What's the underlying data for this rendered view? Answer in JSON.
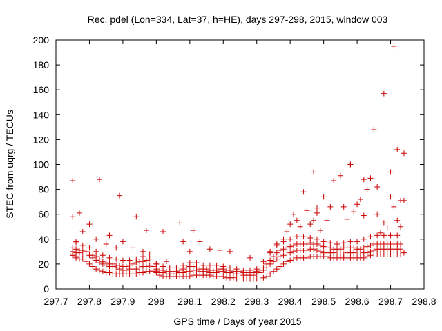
{
  "chart_data": {
    "type": "scatter",
    "title": "Rec. pdel (Lon=334, Lat=37, h=HE), days 297-298, 2015, window 003",
    "xlabel": "GPS time / Days of year 2015",
    "ylabel": "STEC from uqrg / TECUs",
    "xlim": [
      297.7,
      298.8
    ],
    "ylim": [
      0,
      200
    ],
    "xticks": [
      "297.7",
      "297.8",
      "297.9",
      "298",
      "298.1",
      "298.2",
      "298.3",
      "298.4",
      "298.5",
      "298.6",
      "298.7",
      "298.8"
    ],
    "yticks": [
      "0",
      "20",
      "40",
      "60",
      "80",
      "100",
      "120",
      "140",
      "160",
      "180",
      "200"
    ],
    "grid": false,
    "legend": "none",
    "marker": "+",
    "color": "#cc0000",
    "series": [
      {
        "x": [
          297.75,
          297.75,
          297.76,
          297.76,
          297.77,
          297.78,
          297.79,
          297.8,
          297.81,
          297.82,
          297.83,
          297.84,
          297.85,
          297.86,
          297.87,
          297.88,
          297.89,
          297.9,
          297.91,
          297.92,
          297.93,
          297.94,
          297.95,
          297.96,
          297.97,
          297.98,
          297.99,
          298.0,
          298.01,
          298.02,
          298.03,
          298.04,
          298.05,
          298.06,
          298.07,
          298.08,
          298.09,
          298.1,
          298.11,
          298.12,
          298.13,
          298.14,
          298.15,
          298.16,
          298.17,
          298.18,
          298.19,
          298.2,
          298.21,
          298.22,
          298.23,
          298.24,
          298.25,
          298.26,
          298.27,
          298.28,
          298.29,
          298.3,
          298.31,
          298.32,
          298.33,
          298.34,
          298.35,
          298.36,
          298.37,
          298.38,
          298.39,
          298.4,
          298.41,
          298.42,
          298.43,
          298.44,
          298.45,
          298.46,
          298.47,
          298.48,
          298.49,
          298.5,
          298.51,
          298.52,
          298.53,
          298.54,
          298.55,
          298.56,
          298.57,
          298.58,
          298.59,
          298.6,
          298.61,
          298.62,
          298.63,
          298.64,
          298.65,
          298.66,
          298.67,
          298.68,
          298.69,
          298.7,
          298.71,
          298.72,
          298.73,
          298.74
        ],
        "y": [
          27,
          27,
          26,
          25,
          24,
          24,
          22,
          20,
          18,
          16,
          15,
          14,
          13,
          13,
          12,
          12,
          12,
          12,
          12,
          12,
          12,
          12,
          13,
          13,
          14,
          14,
          14,
          13,
          11,
          10,
          10,
          10,
          10,
          10,
          10,
          10,
          10,
          10,
          11,
          11,
          11,
          11,
          11,
          11,
          10,
          10,
          10,
          10,
          9,
          9,
          9,
          8,
          8,
          8,
          8,
          8,
          8,
          8,
          8,
          9,
          10,
          12,
          14,
          16,
          18,
          20,
          22,
          23,
          24,
          25,
          25,
          25,
          25,
          26,
          26,
          26,
          26,
          26,
          26,
          25,
          25,
          25,
          25,
          25,
          25,
          25,
          25,
          25,
          25,
          25,
          26,
          27,
          28,
          28,
          28,
          28,
          28,
          28,
          28,
          28,
          28,
          29
        ]
      },
      {
        "x": [
          297.75,
          297.76,
          297.77,
          297.78,
          297.79,
          297.8,
          297.81,
          297.82,
          297.83,
          297.84,
          297.85,
          297.86,
          297.87,
          297.88,
          297.89,
          297.9,
          297.91,
          297.92,
          297.93,
          297.94,
          297.95,
          297.96,
          297.97,
          297.98,
          297.99,
          298.0,
          298.01,
          298.02,
          298.03,
          298.04,
          298.05,
          298.06,
          298.07,
          298.08,
          298.09,
          298.1,
          298.11,
          298.12,
          298.13,
          298.14,
          298.15,
          298.16,
          298.17,
          298.18,
          298.19,
          298.2,
          298.21,
          298.22,
          298.23,
          298.24,
          298.25,
          298.26,
          298.27,
          298.28,
          298.29,
          298.3,
          298.31,
          298.32,
          298.33,
          298.34,
          298.35,
          298.36,
          298.37,
          298.38,
          298.39,
          298.4,
          298.41,
          298.42,
          298.43,
          298.44,
          298.45,
          298.46,
          298.47,
          298.48,
          298.49,
          298.5,
          298.51,
          298.52,
          298.53,
          298.54,
          298.55,
          298.56,
          298.57,
          298.58,
          298.59,
          298.6,
          298.61,
          298.62,
          298.63,
          298.64,
          298.65,
          298.66,
          298.67,
          298.68,
          298.69,
          298.7,
          298.71,
          298.72,
          298.73
        ],
        "y": [
          30,
          29,
          29,
          28,
          28,
          27,
          25,
          23,
          21,
          20,
          19,
          18,
          18,
          17,
          16,
          15,
          15,
          16,
          16,
          16,
          17,
          18,
          18,
          19,
          15,
          14,
          13,
          13,
          12,
          12,
          12,
          12,
          13,
          13,
          14,
          14,
          15,
          15,
          14,
          14,
          14,
          13,
          13,
          13,
          14,
          14,
          13,
          13,
          12,
          12,
          12,
          11,
          11,
          11,
          11,
          12,
          13,
          15,
          17,
          20,
          22,
          24,
          26,
          27,
          28,
          29,
          30,
          31,
          31,
          31,
          31,
          32,
          32,
          31,
          30,
          29,
          29,
          29,
          29,
          28,
          28,
          28,
          29,
          29,
          29,
          28,
          28,
          29,
          29,
          30,
          31,
          32,
          32,
          32,
          32,
          32,
          32,
          32,
          32
        ]
      },
      {
        "x": [
          297.75,
          297.76,
          297.77,
          297.78,
          297.79,
          297.8,
          297.81,
          297.82,
          297.83,
          297.84,
          297.85,
          297.86,
          297.87,
          297.88,
          297.89,
          297.9,
          297.91,
          297.92,
          297.93,
          297.94,
          297.95,
          297.96,
          297.97,
          297.98,
          297.99,
          298.0,
          298.01,
          298.02,
          298.03,
          298.04,
          298.05,
          298.06,
          298.07,
          298.08,
          298.09,
          298.1,
          298.11,
          298.12,
          298.13,
          298.14,
          298.15,
          298.16,
          298.17,
          298.18,
          298.19,
          298.2,
          298.21,
          298.22,
          298.23,
          298.24,
          298.25,
          298.26,
          298.27,
          298.28,
          298.29,
          298.3,
          298.31,
          298.32,
          298.33,
          298.34,
          298.35,
          298.36,
          298.37,
          298.38,
          298.39,
          298.4,
          298.41,
          298.42,
          298.43,
          298.44,
          298.45,
          298.46,
          298.47,
          298.48,
          298.49,
          298.5,
          298.51,
          298.52,
          298.53,
          298.54,
          298.55,
          298.56,
          298.57,
          298.58,
          298.59,
          298.6,
          298.61,
          298.62,
          298.63,
          298.64,
          298.65,
          298.66,
          298.67,
          298.68,
          298.69,
          298.7,
          298.71,
          298.72,
          298.73
        ],
        "y": [
          33,
          32,
          31,
          31,
          30,
          28,
          27,
          26,
          24,
          22,
          21,
          20,
          20,
          19,
          19,
          18,
          18,
          19,
          20,
          21,
          22,
          22,
          23,
          24,
          18,
          16,
          15,
          15,
          14,
          14,
          14,
          14,
          15,
          16,
          17,
          18,
          18,
          17,
          16,
          16,
          16,
          15,
          15,
          15,
          16,
          16,
          15,
          15,
          14,
          14,
          14,
          13,
          13,
          13,
          13,
          14,
          15,
          17,
          20,
          23,
          26,
          29,
          31,
          32,
          33,
          34,
          35,
          36,
          36,
          36,
          36,
          37,
          36,
          36,
          35,
          34,
          33,
          33,
          32,
          32,
          32,
          33,
          33,
          33,
          33,
          32,
          32,
          33,
          34,
          35,
          36,
          36,
          36,
          36,
          36,
          36,
          36,
          36,
          36
        ]
      },
      {
        "x": [
          297.76,
          297.78,
          297.8,
          297.82,
          297.84,
          297.86,
          297.88,
          297.9,
          297.92,
          297.94,
          297.96,
          297.98,
          298.0,
          298.02,
          298.04,
          298.06,
          298.08,
          298.1,
          298.12,
          298.14,
          298.16,
          298.18,
          298.2,
          298.22,
          298.24,
          298.26,
          298.28,
          298.3,
          298.32,
          298.34,
          298.36,
          298.38,
          298.4,
          298.42,
          298.44,
          298.46,
          298.48,
          298.5,
          298.52,
          298.54,
          298.56,
          298.58,
          298.6,
          298.62,
          298.64,
          298.66,
          298.68,
          298.7,
          298.72
        ],
        "y": [
          37,
          35,
          33,
          30,
          27,
          25,
          24,
          23,
          23,
          24,
          26,
          28,
          20,
          18,
          17,
          17,
          19,
          21,
          21,
          19,
          19,
          19,
          18,
          17,
          16,
          15,
          15,
          16,
          22,
          29,
          35,
          38,
          40,
          42,
          42,
          41,
          40,
          38,
          37,
          36,
          37,
          38,
          38,
          40,
          42,
          43,
          43,
          43,
          43
        ]
      },
      {
        "x": [
          297.75,
          297.75,
          297.76,
          297.77,
          297.78,
          297.8,
          297.82,
          297.83,
          297.85,
          297.86,
          297.88,
          297.89,
          297.9,
          297.93,
          297.94,
          297.96,
          297.97,
          298.0,
          298.02,
          298.03,
          298.07,
          298.08,
          298.1,
          298.11,
          298.13,
          298.16,
          298.19,
          298.22,
          298.28,
          298.34,
          298.36,
          298.38,
          298.39,
          298.4,
          298.41,
          298.42,
          298.43,
          298.44,
          298.45,
          298.46,
          298.47,
          298.47,
          298.48,
          298.48,
          298.49,
          298.5,
          298.51,
          298.52,
          298.53,
          298.55,
          298.56,
          298.57,
          298.58,
          298.58,
          298.59,
          298.6,
          298.61,
          298.62,
          298.62,
          298.63,
          298.64,
          298.65,
          298.66,
          298.66,
          298.67,
          298.68,
          298.68,
          298.69,
          298.7,
          298.7,
          298.71,
          298.71,
          298.72,
          298.72,
          298.73,
          298.73,
          298.74,
          298.74
        ],
        "y": [
          87,
          58,
          38,
          61,
          46,
          52,
          40,
          88,
          36,
          43,
          33,
          75,
          38,
          33,
          58,
          30,
          47,
          20,
          46,
          22,
          53,
          38,
          30,
          47,
          38,
          32,
          31,
          30,
          25,
          30,
          36,
          40,
          46,
          52,
          60,
          55,
          50,
          78,
          63,
          52,
          94,
          55,
          65,
          61,
          47,
          74,
          55,
          66,
          87,
          91,
          66,
          56,
          100,
          100,
          62,
          68,
          72,
          88,
          59,
          80,
          89,
          128,
          60,
          82,
          45,
          157,
          53,
          49,
          94,
          74,
          66,
          195,
          55,
          112,
          50,
          71,
          109,
          71
        ]
      }
    ]
  }
}
